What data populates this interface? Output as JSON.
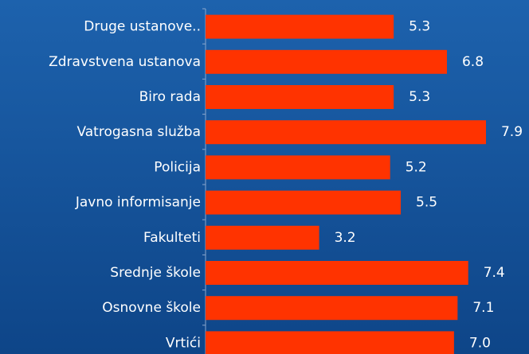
{
  "chart_data": {
    "type": "barh",
    "categories": [
      "Druge ustanove..",
      "Zdravstvena ustanova",
      "Biro rada",
      "Vatrogasna služba",
      "Policija",
      "Javno informisanje",
      "Fakulteti",
      "Srednje škole",
      "Osnovne škole",
      "Vrtići"
    ],
    "values": [
      5.3,
      6.8,
      5.3,
      7.9,
      5.2,
      5.5,
      3.2,
      7.4,
      7.1,
      7.0
    ],
    "value_labels": [
      "5.3",
      "6.8",
      "5.3",
      "7.9",
      "5.2",
      "5.5",
      "3.2",
      "7.4",
      "7.1",
      "7.0"
    ],
    "color": "#ff3300",
    "xlim": [
      0,
      9
    ]
  }
}
